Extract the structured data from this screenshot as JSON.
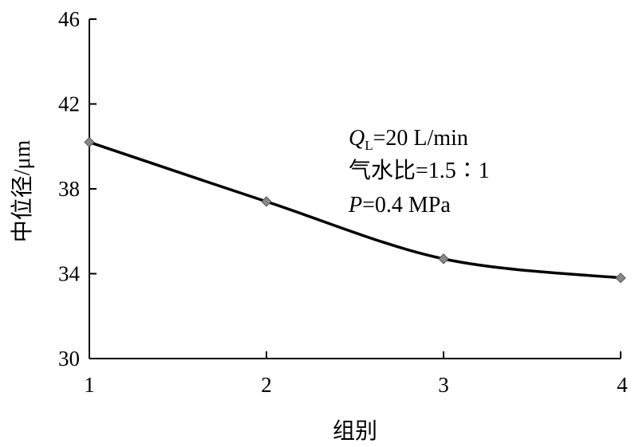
{
  "chart_data": {
    "type": "line",
    "xlabel": "组别",
    "ylabel": "中位径/μm",
    "x": [
      1,
      2,
      3,
      4
    ],
    "x_tick_labels": [
      "1",
      "2",
      "3",
      "4"
    ],
    "series": [
      {
        "values": [
          40.2,
          37.4,
          34.7,
          33.8
        ]
      }
    ],
    "ylim": [
      30,
      46
    ],
    "y_ticks": [
      30,
      34,
      38,
      42,
      46
    ],
    "y_tick_labels": [
      "30",
      "34",
      "38",
      "42",
      "46"
    ],
    "xlim": [
      1,
      4
    ],
    "grid": false,
    "smooth": true,
    "line_color": "#000000",
    "marker_color": "#888888",
    "annotations": {
      "line1_italic": "Q",
      "line1_sub": "L",
      "line1_rest": "=20 L/min",
      "line2": "气水比=1.5∶1",
      "line3_italic": "P",
      "line3_rest": "=0.4 MPa"
    }
  }
}
